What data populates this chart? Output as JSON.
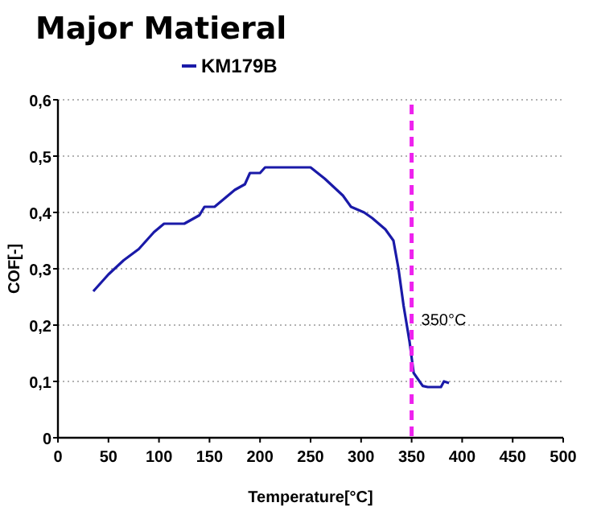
{
  "chart_data": {
    "type": "line",
    "title": "Major Matieral",
    "xlabel": "Temperature[°C]",
    "ylabel": "COF[-]",
    "xlim": [
      0,
      500
    ],
    "xticks": [
      0,
      50,
      100,
      150,
      200,
      250,
      300,
      350,
      400,
      450,
      500
    ],
    "ylim": [
      0,
      0.6
    ],
    "yticks": [
      {
        "value": 0,
        "label": "0"
      },
      {
        "value": 0.1,
        "label": "0,1"
      },
      {
        "value": 0.2,
        "label": "0,2"
      },
      {
        "value": 0.3,
        "label": "0,3"
      },
      {
        "value": 0.4,
        "label": "0,4"
      },
      {
        "value": 0.5,
        "label": "0,5"
      },
      {
        "value": 0.6,
        "label": "0,6"
      }
    ],
    "grid": "y",
    "legend": "top",
    "marker": "none",
    "line_style": "solid",
    "ref_lines": [
      {
        "axis": "x",
        "value": 350,
        "label": "350°C",
        "color": "#ee22ee",
        "line_style": "dashed"
      }
    ],
    "series": [
      {
        "name": "KM179B",
        "color": "#1a1aa8",
        "x": [
          35,
          50,
          65,
          80,
          95,
          105,
          125,
          140,
          145,
          155,
          165,
          175,
          185,
          190,
          200,
          205,
          229,
          250,
          264,
          282,
          290,
          303,
          311,
          324,
          332,
          337,
          342,
          348,
          352,
          361,
          366,
          379,
          382,
          387
        ],
        "values": [
          0.26,
          0.29,
          0.315,
          0.335,
          0.365,
          0.38,
          0.38,
          0.395,
          0.41,
          0.41,
          0.425,
          0.44,
          0.45,
          0.47,
          0.47,
          0.48,
          0.48,
          0.48,
          0.46,
          0.43,
          0.41,
          0.4,
          0.39,
          0.37,
          0.35,
          0.3,
          0.235,
          0.17,
          0.115,
          0.092,
          0.09,
          0.09,
          0.1,
          0.097
        ]
      }
    ]
  }
}
